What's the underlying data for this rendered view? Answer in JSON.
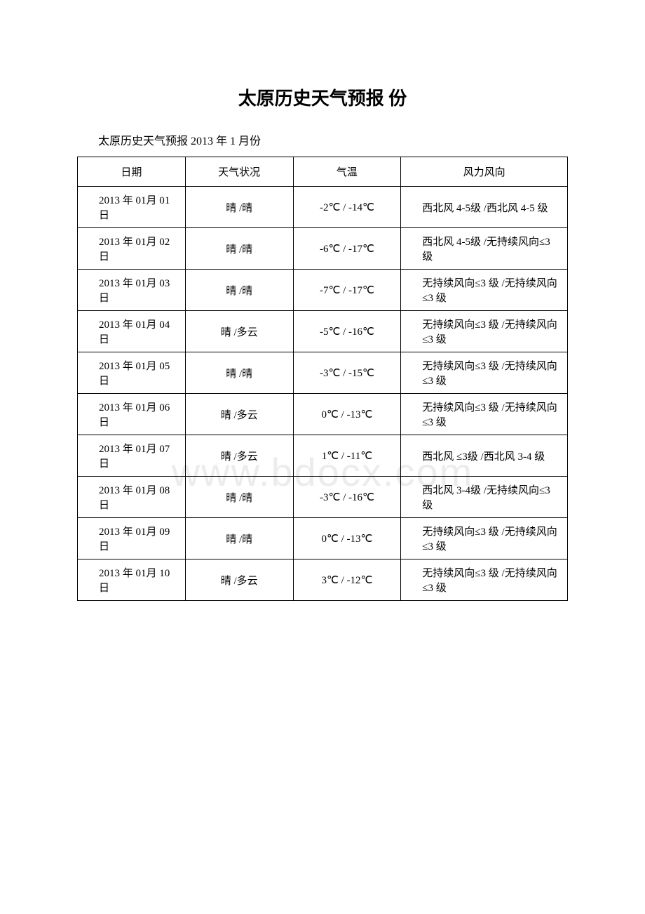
{
  "title": "太原历史天气预报 份",
  "subtitle": "太原历史天气预报 2013 年 1 月份",
  "watermark": "www.bdocx.com",
  "table": {
    "headers": [
      "日期",
      "天气状况",
      "气温",
      "风力风向"
    ],
    "rows": [
      {
        "date": "2013 年 01月 01 日",
        "weather": "晴 /晴",
        "temp": "-2℃ / -14℃",
        "wind": "西北风 4-5级 /西北风 4-5 级"
      },
      {
        "date": "2013 年 01月 02 日",
        "weather": "晴 /晴",
        "temp": "-6℃ / -17℃",
        "wind": "西北风 4-5级 /无持续风向≤3 级"
      },
      {
        "date": "2013 年 01月 03 日",
        "weather": "晴 /晴",
        "temp": "-7℃ / -17℃",
        "wind": "无持续风向≤3 级 /无持续风向 ≤3 级"
      },
      {
        "date": "2013 年 01月 04 日",
        "weather": "晴 /多云",
        "temp": "-5℃ / -16℃",
        "wind": "无持续风向≤3 级 /无持续风向 ≤3 级"
      },
      {
        "date": "2013 年 01月 05 日",
        "weather": "晴 /晴",
        "temp": "-3℃ / -15℃",
        "wind": "无持续风向≤3 级 /无持续风向 ≤3 级"
      },
      {
        "date": "2013 年 01月 06 日",
        "weather": "晴 /多云",
        "temp": "0℃ / -13℃",
        "wind": "无持续风向≤3 级 /无持续风向 ≤3 级"
      },
      {
        "date": "2013 年 01月 07 日",
        "weather": "晴 /多云",
        "temp": "1℃ / -11℃",
        "wind": "西北风 ≤3级 /西北风 3-4 级"
      },
      {
        "date": "2013 年 01月 08 日",
        "weather": "晴 /晴",
        "temp": "-3℃ / -16℃",
        "wind": "西北风 3-4级 /无持续风向≤3 级"
      },
      {
        "date": "2013 年 01月 09 日",
        "weather": "晴 /晴",
        "temp": "0℃ / -13℃",
        "wind": "无持续风向≤3 级 /无持续风向 ≤3 级"
      },
      {
        "date": "2013 年 01月 10 日",
        "weather": "晴 /多云",
        "temp": "3℃ / -12℃",
        "wind": "无持续风向≤3 级 /无持续风向 ≤3 级"
      }
    ]
  }
}
